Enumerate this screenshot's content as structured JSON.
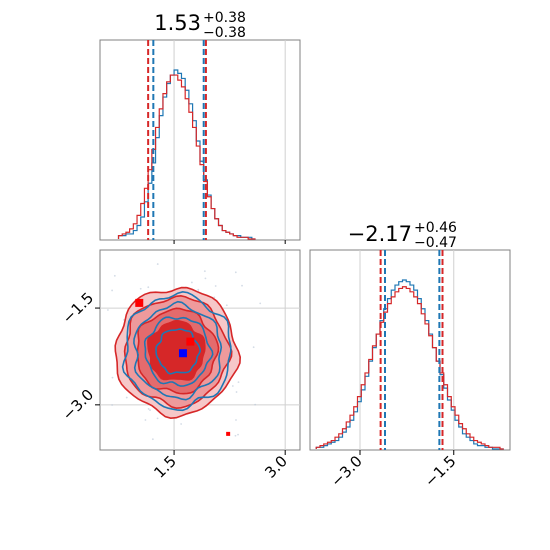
{
  "chart_data": [
    {
      "type": "histogram",
      "panel": "marginal-param1",
      "title": {
        "median": "1.53",
        "plus": "+0.38",
        "minus": "−0.38"
      },
      "x_range": [
        0.5,
        3.2
      ],
      "grid": true,
      "quantile_lines": {
        "blue": [
          1.22,
          1.9
        ],
        "red": [
          1.15,
          1.93
        ]
      },
      "bin_edges": [
        0.75,
        0.8,
        0.85,
        0.9,
        0.95,
        1.0,
        1.05,
        1.1,
        1.15,
        1.2,
        1.25,
        1.3,
        1.35,
        1.4,
        1.45,
        1.5,
        1.55,
        1.6,
        1.65,
        1.7,
        1.75,
        1.8,
        1.85,
        1.9,
        1.95,
        2.0,
        2.05,
        2.1,
        2.15,
        2.2,
        2.25,
        2.3,
        2.35,
        2.4,
        2.45,
        2.5,
        2.55,
        2.6
      ],
      "series": [
        {
          "color": "#1f77b4",
          "values": [
            0.02,
            0.02,
            0.03,
            0.03,
            0.05,
            0.08,
            0.13,
            0.22,
            0.33,
            0.45,
            0.6,
            0.73,
            0.84,
            0.92,
            0.97,
            1.0,
            0.98,
            0.95,
            0.88,
            0.8,
            0.7,
            0.58,
            0.46,
            0.35,
            0.26,
            0.18,
            0.12,
            0.08,
            0.05,
            0.04,
            0.03,
            0.02,
            0.02,
            0.01,
            0.01,
            0.01,
            0.0
          ]
        },
        {
          "color": "#d62728",
          "values": [
            0.02,
            0.03,
            0.04,
            0.06,
            0.09,
            0.14,
            0.21,
            0.3,
            0.41,
            0.53,
            0.66,
            0.77,
            0.86,
            0.93,
            0.97,
            0.97,
            0.94,
            0.9,
            0.83,
            0.75,
            0.66,
            0.55,
            0.44,
            0.34,
            0.25,
            0.18,
            0.12,
            0.08,
            0.05,
            0.04,
            0.03,
            0.02,
            0.01,
            0.01,
            0.01,
            0.0,
            0.0
          ]
        }
      ]
    },
    {
      "type": "histogram",
      "panel": "marginal-param2",
      "title": {
        "median": "−2.17",
        "plus": "+0.46",
        "minus": "−0.47"
      },
      "x_range": [
        -3.8,
        -0.6
      ],
      "x_ticks": [
        "−3.0",
        "−1.5"
      ],
      "x_tick_values": [
        -3.0,
        -1.5
      ],
      "grid": true,
      "quantile_lines": {
        "blue": [
          -2.6,
          -1.73
        ],
        "red": [
          -2.67,
          -1.68
        ]
      },
      "bin_edges": [
        -3.7,
        -3.64,
        -3.58,
        -3.52,
        -3.46,
        -3.4,
        -3.34,
        -3.28,
        -3.22,
        -3.16,
        -3.1,
        -3.04,
        -2.98,
        -2.92,
        -2.86,
        -2.8,
        -2.74,
        -2.68,
        -2.62,
        -2.56,
        -2.5,
        -2.44,
        -2.38,
        -2.32,
        -2.26,
        -2.2,
        -2.14,
        -2.08,
        -2.02,
        -1.96,
        -1.9,
        -1.84,
        -1.78,
        -1.72,
        -1.66,
        -1.6,
        -1.54,
        -1.48,
        -1.42,
        -1.36,
        -1.3,
        -1.24,
        -1.18,
        -1.12,
        -1.06,
        -1.0,
        -0.94,
        -0.88,
        -0.82,
        -0.76,
        -0.7
      ],
      "series": [
        {
          "color": "#1f77b4",
          "values": [
            0.01,
            0.01,
            0.02,
            0.03,
            0.04,
            0.05,
            0.07,
            0.1,
            0.13,
            0.17,
            0.22,
            0.28,
            0.35,
            0.43,
            0.52,
            0.6,
            0.68,
            0.76,
            0.83,
            0.89,
            0.94,
            0.97,
            0.99,
            1.0,
            0.99,
            0.97,
            0.94,
            0.89,
            0.83,
            0.76,
            0.68,
            0.6,
            0.52,
            0.44,
            0.36,
            0.29,
            0.23,
            0.17,
            0.13,
            0.09,
            0.07,
            0.05,
            0.03,
            0.02,
            0.02,
            0.01,
            0.01,
            0.0,
            0.0,
            0.0
          ]
        },
        {
          "color": "#d62728",
          "values": [
            0.01,
            0.02,
            0.03,
            0.04,
            0.05,
            0.07,
            0.09,
            0.12,
            0.16,
            0.2,
            0.25,
            0.31,
            0.38,
            0.45,
            0.53,
            0.61,
            0.68,
            0.75,
            0.81,
            0.86,
            0.9,
            0.93,
            0.95,
            0.96,
            0.95,
            0.93,
            0.9,
            0.86,
            0.8,
            0.74,
            0.67,
            0.6,
            0.52,
            0.45,
            0.38,
            0.31,
            0.25,
            0.2,
            0.15,
            0.12,
            0.09,
            0.07,
            0.05,
            0.04,
            0.03,
            0.02,
            0.01,
            0.01,
            0.01,
            0.0
          ]
        }
      ]
    },
    {
      "type": "contour",
      "panel": "joint",
      "x_range": [
        0.5,
        3.2
      ],
      "y_range": [
        -3.7,
        -0.6
      ],
      "x_ticks": [
        "1.5",
        "3.0"
      ],
      "x_tick_values": [
        1.5,
        3.0
      ],
      "y_ticks": [
        "−1.5",
        "−3.0"
      ],
      "y_tick_values": [
        -1.5,
        -3.0
      ],
      "grid": true,
      "blue": {
        "center": [
          1.55,
          -2.17
        ],
        "sigma": [
          0.38,
          0.46
        ],
        "marker": [
          1.62,
          -2.2
        ]
      },
      "red": {
        "center": [
          1.53,
          -2.17
        ],
        "sigma": [
          0.4,
          0.48
        ],
        "markers": [
          [
            1.72,
            -2.02
          ],
          [
            1.03,
            -1.42
          ],
          [
            2.23,
            -3.45
          ]
        ]
      }
    }
  ]
}
